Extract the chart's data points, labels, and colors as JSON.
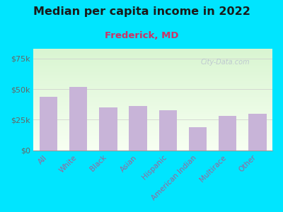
{
  "title": "Median per capita income in 2022",
  "subtitle": "Frederick, MD",
  "categories": [
    "All",
    "White",
    "Black",
    "Asian",
    "Hispanic",
    "American Indian",
    "Multirace",
    "Other"
  ],
  "values": [
    44000,
    52000,
    35000,
    36000,
    33000,
    19000,
    28000,
    30000
  ],
  "bar_color": "#c8b4d8",
  "background_outer": "#00e5ff",
  "title_color": "#1a1a1a",
  "subtitle_color": "#cc3366",
  "ytick_color": "#666666",
  "xtick_color": "#996699",
  "watermark": "City-Data.com",
  "ylim": [
    0,
    83000
  ],
  "yticks": [
    0,
    25000,
    50000,
    75000
  ],
  "ytick_labels": [
    "$0",
    "$25k",
    "$50k",
    "$75k"
  ]
}
